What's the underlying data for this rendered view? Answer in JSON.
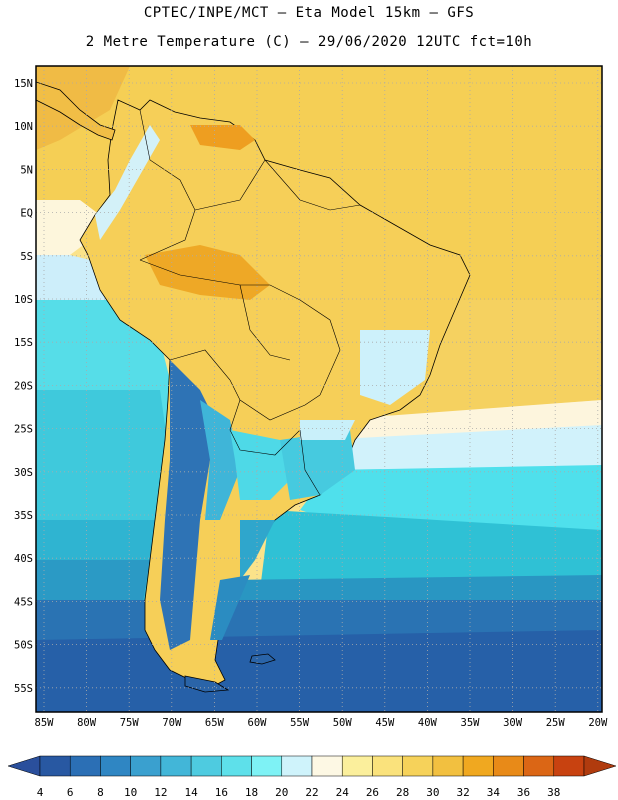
{
  "header": {
    "line1": "CPTEC/INPE/MCT –  Eta Model 15km – GFS",
    "line2": "2 Metre Temperature (C) – 29/06/2020 12UTC fct=10h"
  },
  "map": {
    "lat_labels": [
      "15N",
      "10N",
      "5N",
      "EQ",
      "5S",
      "10S",
      "15S",
      "20S",
      "25S",
      "30S",
      "35S",
      "40S",
      "45S",
      "50S",
      "55S"
    ],
    "lon_labels": [
      "85W",
      "80W",
      "75W",
      "70W",
      "65W",
      "60W",
      "55W",
      "50W",
      "45W",
      "40W",
      "35W",
      "30W",
      "25W",
      "20W"
    ],
    "colors": {
      "ocean_pale": "#fefbe8",
      "warm_yellow": "#f9dc6a",
      "gold": "#f3c542",
      "orange": "#e8a322",
      "light_cyan": "#ccf0fa",
      "cyan": "#4fe3ef",
      "teal": "#2ec4d6",
      "mid_blue": "#2a9dc4",
      "dark_blue": "#2763a8"
    }
  },
  "colorbar": {
    "labels": [
      "4",
      "6",
      "8",
      "10",
      "12",
      "14",
      "16",
      "18",
      "20",
      "22",
      "24",
      "26",
      "28",
      "30",
      "32",
      "34",
      "36",
      "38"
    ],
    "colors": [
      "#2858a2",
      "#2b6fb5",
      "#2f86c3",
      "#3aa0cf",
      "#42b6d8",
      "#4ecbe0",
      "#5ee0ea",
      "#7ef2f5",
      "#cff3fb",
      "#fdf8e4",
      "#fbef9c",
      "#fae27c",
      "#f6d25a",
      "#f2c040",
      "#f0a820",
      "#e88a18",
      "#db6615",
      "#c84210"
    ],
    "left_arrow_color": "#2a4f9c",
    "right_arrow_color": "#b03b0e"
  }
}
